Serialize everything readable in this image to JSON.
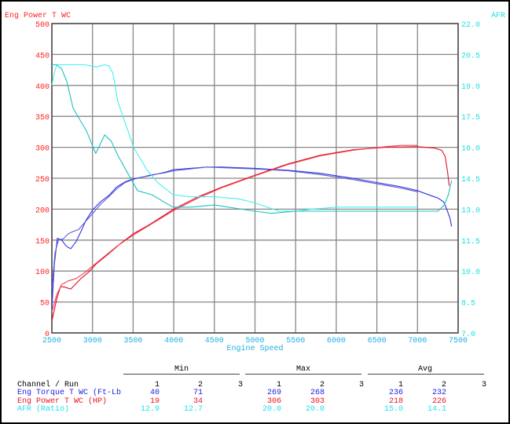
{
  "chart_data": {
    "type": "line",
    "title": "",
    "xlabel": "Engine Speed",
    "ylabel_left": "Eng Power T WC",
    "ylabel_right": "AFR",
    "xlim": [
      2500,
      7500
    ],
    "xticks": [
      2500,
      3000,
      3500,
      4000,
      4500,
      5000,
      5500,
      6000,
      6500,
      7000,
      7500
    ],
    "ylim_left": [
      0,
      500
    ],
    "yticks_left": [
      0,
      50,
      100,
      150,
      200,
      250,
      300,
      350,
      400,
      450,
      500
    ],
    "ylim_right": [
      7.0,
      22.0
    ],
    "yticks_right": [
      "7.0",
      "8.5",
      "10.0",
      "11.5",
      "13.0",
      "14.5",
      "16.0",
      "17.5",
      "19.0",
      "20.5",
      "22.0"
    ],
    "grid": true,
    "colors": {
      "left_axis": "#ff2020",
      "right_axis": "#20e0e0",
      "x_axis": "#20b0e0"
    },
    "series": [
      {
        "channel": "Eng Torque T WC",
        "run": 1,
        "axis": "left",
        "color": "#3030e0",
        "points": [
          [
            2500,
            40
          ],
          [
            2530,
            110
          ],
          [
            2568,
            153
          ],
          [
            2620,
            150
          ],
          [
            2680,
            140
          ],
          [
            2732,
            136
          ],
          [
            2800,
            148
          ],
          [
            2858,
            164
          ],
          [
            2920,
            182
          ],
          [
            3003,
            199
          ],
          [
            3100,
            212
          ],
          [
            3200,
            222
          ],
          [
            3300,
            236
          ],
          [
            3400,
            244
          ],
          [
            3500,
            249
          ],
          [
            3700,
            254
          ],
          [
            3900,
            260
          ],
          [
            4000,
            264
          ],
          [
            4200,
            266
          ],
          [
            4400,
            268
          ],
          [
            4600,
            268
          ],
          [
            5000,
            266
          ],
          [
            5400,
            263
          ],
          [
            5800,
            258
          ],
          [
            6200,
            250
          ],
          [
            6500,
            243
          ],
          [
            6800,
            236
          ],
          [
            7000,
            230
          ],
          [
            7100,
            225
          ],
          [
            7250,
            218
          ],
          [
            7320,
            212
          ],
          [
            7360,
            200
          ],
          [
            7400,
            185
          ],
          [
            7420,
            172
          ]
        ]
      },
      {
        "channel": "Eng Torque T WC",
        "run": 2,
        "axis": "left",
        "color": "#6060d0",
        "points": [
          [
            2500,
            71
          ],
          [
            2540,
            130
          ],
          [
            2580,
            150
          ],
          [
            2640,
            152
          ],
          [
            2700,
            160
          ],
          [
            2761,
            164
          ],
          [
            2829,
            167
          ],
          [
            2900,
            178
          ],
          [
            3003,
            193
          ],
          [
            3100,
            208
          ],
          [
            3200,
            220
          ],
          [
            3300,
            233
          ],
          [
            3400,
            243
          ],
          [
            3500,
            248
          ],
          [
            3700,
            255
          ],
          [
            3900,
            259
          ],
          [
            4000,
            262
          ],
          [
            4200,
            265
          ],
          [
            4400,
            268
          ],
          [
            4600,
            267
          ],
          [
            5000,
            265
          ],
          [
            5400,
            262
          ],
          [
            5800,
            256
          ],
          [
            6200,
            248
          ],
          [
            6500,
            241
          ],
          [
            6800,
            234
          ],
          [
            7000,
            228
          ]
        ]
      },
      {
        "channel": "Eng Power T WC",
        "run": 1,
        "axis": "left",
        "color": "#e01020",
        "points": [
          [
            2500,
            19
          ],
          [
            2560,
            55
          ],
          [
            2606,
            75
          ],
          [
            2660,
            74
          ],
          [
            2732,
            71
          ],
          [
            2800,
            80
          ],
          [
            2858,
            88
          ],
          [
            2950,
            98
          ],
          [
            3050,
            112
          ],
          [
            3200,
            128
          ],
          [
            3350,
            145
          ],
          [
            3500,
            160
          ],
          [
            3700,
            175
          ],
          [
            4000,
            200
          ],
          [
            4300,
            220
          ],
          [
            4600,
            236
          ],
          [
            5000,
            255
          ],
          [
            5400,
            273
          ],
          [
            5800,
            287
          ],
          [
            6200,
            296
          ],
          [
            6600,
            300
          ],
          [
            7000,
            301
          ],
          [
            7200,
            299
          ],
          [
            7300,
            295
          ],
          [
            7340,
            285
          ],
          [
            7370,
            260
          ],
          [
            7390,
            238
          ]
        ]
      },
      {
        "channel": "Eng Power T WC",
        "run": 2,
        "axis": "left",
        "color": "#f04050",
        "points": [
          [
            2500,
            34
          ],
          [
            2560,
            62
          ],
          [
            2620,
            78
          ],
          [
            2700,
            84
          ],
          [
            2800,
            88
          ],
          [
            2900,
            97
          ],
          [
            3000,
            108
          ],
          [
            3150,
            124
          ],
          [
            3300,
            140
          ],
          [
            3500,
            158
          ],
          [
            3700,
            174
          ],
          [
            4000,
            198
          ],
          [
            4300,
            218
          ],
          [
            4600,
            235
          ],
          [
            5000,
            254
          ],
          [
            5400,
            272
          ],
          [
            5800,
            286
          ],
          [
            6200,
            295
          ],
          [
            6600,
            301
          ],
          [
            6800,
            303
          ],
          [
            7000,
            303
          ]
        ]
      },
      {
        "channel": "AFR",
        "run": 1,
        "axis": "right",
        "color": "#40f0f0",
        "points": [
          [
            2500,
            19.0
          ],
          [
            2530,
            19.6
          ],
          [
            2560,
            20.0
          ],
          [
            2900,
            20.0
          ],
          [
            3050,
            19.9
          ],
          [
            3150,
            20.0
          ],
          [
            3200,
            19.95
          ],
          [
            3250,
            19.6
          ],
          [
            3313,
            18.2
          ],
          [
            3410,
            17.1
          ],
          [
            3506,
            16.0
          ],
          [
            3670,
            14.9
          ],
          [
            3800,
            14.3
          ],
          [
            3990,
            13.7
          ],
          [
            4200,
            13.6
          ],
          [
            4500,
            13.6
          ],
          [
            4800,
            13.5
          ],
          [
            5000,
            13.3
          ],
          [
            5300,
            12.9
          ],
          [
            5500,
            12.9
          ],
          [
            5700,
            13.0
          ],
          [
            6000,
            13.1
          ],
          [
            6500,
            13.1
          ],
          [
            7000,
            13.1
          ]
        ]
      },
      {
        "channel": "AFR",
        "run": 2,
        "axis": "right",
        "color": "#20c0c0",
        "points": [
          [
            2500,
            20.0
          ],
          [
            2560,
            20.0
          ],
          [
            2620,
            19.8
          ],
          [
            2684,
            19.2
          ],
          [
            2761,
            17.9
          ],
          [
            2850,
            17.3
          ],
          [
            2926,
            16.8
          ],
          [
            3040,
            15.7
          ],
          [
            3150,
            16.6
          ],
          [
            3230,
            16.3
          ],
          [
            3313,
            15.6
          ],
          [
            3440,
            14.7
          ],
          [
            3554,
            13.9
          ],
          [
            3730,
            13.7
          ],
          [
            3990,
            13.1
          ],
          [
            4200,
            13.1
          ],
          [
            4500,
            13.2
          ],
          [
            5000,
            12.9
          ],
          [
            5200,
            12.8
          ],
          [
            5500,
            12.9
          ],
          [
            6000,
            12.9
          ],
          [
            6500,
            12.9
          ],
          [
            7000,
            12.9
          ],
          [
            7250,
            12.9
          ],
          [
            7330,
            13.2
          ],
          [
            7380,
            13.7
          ],
          [
            7420,
            14.4
          ]
        ]
      }
    ]
  },
  "stats": {
    "headers": {
      "min": "Min",
      "max": "Max",
      "avg": "Avg",
      "channel_run": "Channel / Run"
    },
    "runs": [
      "1",
      "2",
      "3"
    ],
    "rows": [
      {
        "label": "Eng Torque T WC (Ft-Lb",
        "color": "#2020e0",
        "min": [
          "40",
          "71"
        ],
        "max": [
          "269",
          "268"
        ],
        "avg": [
          "236",
          "232"
        ]
      },
      {
        "label": "Eng Power T WC (HP)",
        "color": "#f01020",
        "min": [
          "19",
          "34"
        ],
        "max": [
          "306",
          "303"
        ],
        "avg": [
          "218",
          "226"
        ]
      },
      {
        "label": "AFR (Ratio)",
        "color": "#20e0f0",
        "min": [
          "12.9",
          "12.7"
        ],
        "max": [
          "20.0",
          "20.0"
        ],
        "avg": [
          "15.0",
          "14.1"
        ]
      }
    ]
  }
}
